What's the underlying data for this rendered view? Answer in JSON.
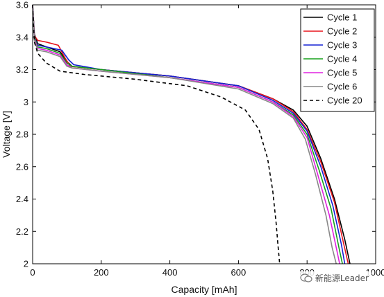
{
  "chart_data": {
    "type": "line",
    "xlabel": "Capacity [mAh]",
    "ylabel": "Voltage [V]",
    "xlim": [
      0,
      1000
    ],
    "ylim": [
      2,
      3.6
    ],
    "xticks": [
      0,
      200,
      400,
      600,
      800,
      1000
    ],
    "yticks": [
      2,
      2.2,
      2.4,
      2.6,
      2.8,
      3,
      3.2,
      3.4,
      3.6
    ],
    "grid": false,
    "legend_position": "top-right",
    "series": [
      {
        "name": "Cycle 1",
        "color": "#000000",
        "dash": "solid",
        "x": [
          0,
          5,
          15,
          40,
          80,
          100,
          115,
          200,
          400,
          600,
          700,
          760,
          800,
          840,
          880,
          910,
          925
        ],
        "y": [
          3.6,
          3.42,
          3.36,
          3.34,
          3.31,
          3.25,
          3.22,
          3.2,
          3.16,
          3.1,
          3.02,
          2.95,
          2.85,
          2.65,
          2.4,
          2.15,
          2.0
        ]
      },
      {
        "name": "Cycle 2",
        "color": "#e8141c",
        "dash": "solid",
        "x": [
          0,
          5,
          15,
          40,
          75,
          95,
          110,
          200,
          400,
          600,
          700,
          760,
          800,
          840,
          880,
          905,
          920
        ],
        "y": [
          3.6,
          3.41,
          3.38,
          3.37,
          3.35,
          3.27,
          3.22,
          3.2,
          3.16,
          3.1,
          3.02,
          2.94,
          2.83,
          2.63,
          2.38,
          2.14,
          2.0
        ]
      },
      {
        "name": "Cycle 3",
        "color": "#1420d4",
        "dash": "solid",
        "x": [
          0,
          5,
          15,
          40,
          85,
          105,
          120,
          200,
          400,
          600,
          700,
          760,
          800,
          840,
          875,
          900,
          910
        ],
        "y": [
          3.6,
          3.4,
          3.35,
          3.34,
          3.32,
          3.26,
          3.23,
          3.2,
          3.16,
          3.1,
          3.01,
          2.93,
          2.82,
          2.6,
          2.36,
          2.12,
          2.0
        ]
      },
      {
        "name": "Cycle 4",
        "color": "#16a01a",
        "dash": "solid",
        "x": [
          0,
          5,
          15,
          40,
          80,
          100,
          115,
          200,
          400,
          600,
          700,
          760,
          800,
          835,
          870,
          893,
          903
        ],
        "y": [
          3.6,
          3.4,
          3.34,
          3.33,
          3.3,
          3.24,
          3.22,
          3.2,
          3.15,
          3.09,
          3.0,
          2.92,
          2.8,
          2.58,
          2.34,
          2.1,
          2.0
        ]
      },
      {
        "name": "Cycle 5",
        "color": "#e020e0",
        "dash": "solid",
        "x": [
          0,
          5,
          15,
          40,
          80,
          100,
          115,
          200,
          400,
          600,
          700,
          760,
          800,
          830,
          865,
          885,
          895
        ],
        "y": [
          3.6,
          3.39,
          3.33,
          3.32,
          3.29,
          3.23,
          3.21,
          3.19,
          3.15,
          3.09,
          3.0,
          2.91,
          2.78,
          2.56,
          2.3,
          2.1,
          2.0
        ]
      },
      {
        "name": "Cycle 6",
        "color": "#888888",
        "dash": "solid",
        "x": [
          0,
          5,
          15,
          40,
          80,
          100,
          115,
          200,
          400,
          600,
          700,
          760,
          795,
          825,
          855,
          873,
          885
        ],
        "y": [
          3.6,
          3.38,
          3.32,
          3.31,
          3.28,
          3.22,
          3.21,
          3.19,
          3.15,
          3.08,
          2.99,
          2.9,
          2.77,
          2.55,
          2.3,
          2.1,
          2.0
        ]
      },
      {
        "name": "Cycle 20",
        "color": "#000000",
        "dash": "dashed",
        "x": [
          0,
          5,
          15,
          40,
          80,
          150,
          300,
          450,
          550,
          620,
          660,
          685,
          700,
          710,
          715,
          718,
          720
        ],
        "y": [
          3.6,
          3.37,
          3.3,
          3.24,
          3.19,
          3.17,
          3.14,
          3.1,
          3.03,
          2.95,
          2.83,
          2.65,
          2.45,
          2.25,
          2.12,
          2.05,
          2.0
        ]
      }
    ]
  },
  "watermark": {
    "text": "新能源Leader"
  }
}
